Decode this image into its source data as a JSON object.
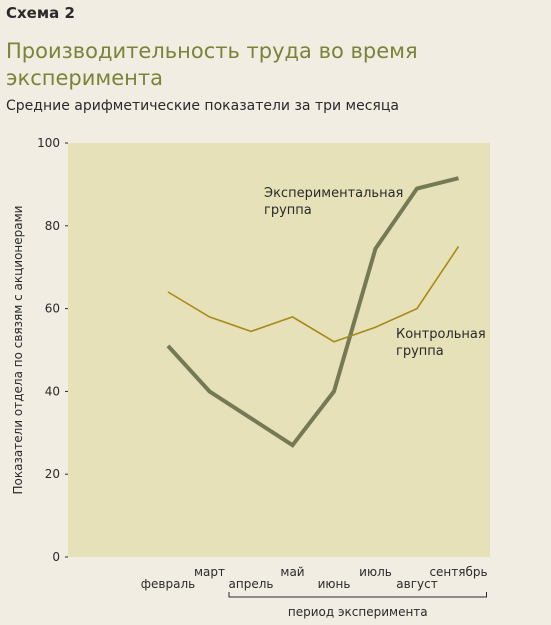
{
  "header": {
    "scheme_label": "Схема 2",
    "title": "Производительность труда во время эксперимента",
    "subtitle": "Средние арифметические показатели за три месяца"
  },
  "chart_data": {
    "type": "line",
    "categories": [
      "февраль",
      "март",
      "апрель",
      "май",
      "июнь",
      "июль",
      "август",
      "сентябрь"
    ],
    "series": [
      {
        "name": "Экспериментальная группа",
        "values": [
          51,
          40,
          33.5,
          27,
          40,
          74.5,
          89,
          91.5
        ],
        "color": "#757a55"
      },
      {
        "name": "Контрольная группа",
        "values": [
          64,
          58,
          54.5,
          58,
          52,
          55.5,
          60,
          75
        ],
        "color": "#a88a1a"
      }
    ],
    "ylabel": "Показатели отдела по связям с акционерами",
    "xlabel": "",
    "ylim": [
      0,
      100
    ],
    "yticks": [
      0,
      20,
      40,
      60,
      80,
      100
    ],
    "plot_bg": "#e6e1b8",
    "bracket_label": "период эксперимента",
    "bracket_range": [
      "апрель",
      "сентябрь"
    ]
  }
}
